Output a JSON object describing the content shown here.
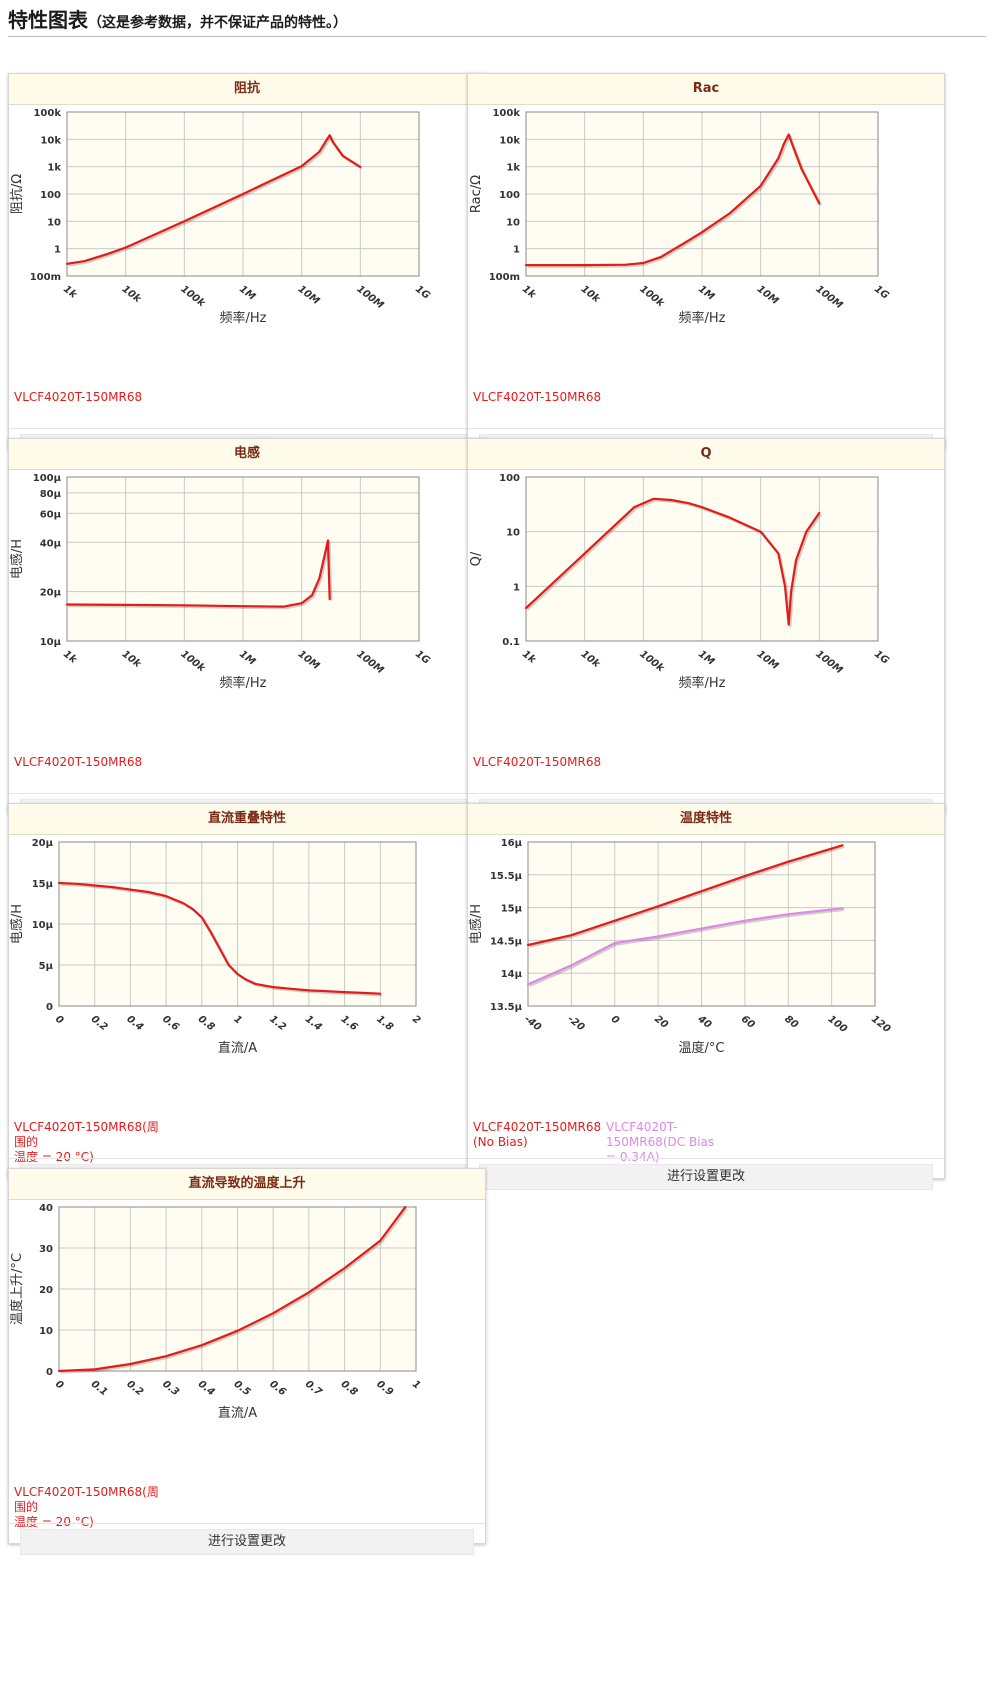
{
  "page": {
    "title": "特性图表",
    "note": "（这是参考数据，并不保证产品的特性。）",
    "button_label": "进行设置更改"
  },
  "colors": {
    "series_red": "#e31b1b",
    "series_violet": "#dd88e8",
    "plot_bg": "#fffdf1",
    "header_text": "#7b2a16"
  },
  "chart_data": [
    {
      "id": "impedance",
      "title": "阻抗",
      "type": "line",
      "xlabel": "频率/Hz",
      "ylabel": "阻抗/Ω",
      "xscale": "log",
      "yscale": "log",
      "xlim": [
        1000,
        1000000000
      ],
      "ylim": [
        0.1,
        100000
      ],
      "xticks": [
        1000,
        10000,
        100000,
        1000000,
        10000000,
        100000000,
        1000000000
      ],
      "xtick_labels": [
        "1k",
        "10k",
        "100k",
        "1M",
        "10M",
        "100M",
        "1G"
      ],
      "yticks": [
        0.1,
        1,
        10,
        100,
        1000,
        10000,
        100000
      ],
      "ytick_labels": [
        "100m",
        "1",
        "10",
        "100",
        "1k",
        "10k",
        "100k"
      ],
      "series": [
        {
          "name": "VLCF4020T-150MR68",
          "color": "#e31b1b",
          "x": [
            1000,
            2000,
            5000,
            10000,
            100000,
            1000000,
            10000000,
            20000000,
            27000000,
            30000000,
            34000000,
            50000000,
            100000000
          ],
          "y": [
            0.28,
            0.35,
            0.65,
            1.1,
            10,
            100,
            1050,
            3500,
            10000,
            14000,
            8000,
            2500,
            980
          ]
        }
      ],
      "legend": [
        {
          "text": "VLCF4020T-150MR68",
          "color": "#e31b1b"
        }
      ]
    },
    {
      "id": "rac",
      "title": "Rac",
      "type": "line",
      "xlabel": "频率/Hz",
      "ylabel": "Rac/Ω",
      "xscale": "log",
      "yscale": "log",
      "xlim": [
        1000,
        1000000000
      ],
      "ylim": [
        0.1,
        100000
      ],
      "xticks": [
        1000,
        10000,
        100000,
        1000000,
        10000000,
        100000000,
        1000000000
      ],
      "xtick_labels": [
        "1k",
        "10k",
        "100k",
        "1M",
        "10M",
        "100M",
        "1G"
      ],
      "yticks": [
        0.1,
        1,
        10,
        100,
        1000,
        10000,
        100000
      ],
      "ytick_labels": [
        "100m",
        "1",
        "10",
        "100",
        "1k",
        "10k",
        "100k"
      ],
      "series": [
        {
          "name": "VLCF4020T-150MR68",
          "color": "#e31b1b",
          "x": [
            1000,
            10000,
            50000,
            100000,
            200000,
            500000,
            1000000,
            3000000,
            10000000,
            20000000,
            25000000,
            30000000,
            35000000,
            50000000,
            100000000
          ],
          "y": [
            0.25,
            0.25,
            0.26,
            0.3,
            0.5,
            1.6,
            4,
            20,
            200,
            2000,
            7000,
            15000,
            6000,
            800,
            45
          ]
        }
      ],
      "legend": [
        {
          "text": "VLCF4020T-150MR68",
          "color": "#e31b1b"
        }
      ]
    },
    {
      "id": "inductance",
      "title": "电感",
      "type": "line",
      "xlabel": "频率/Hz",
      "ylabel": "电感/H",
      "xscale": "log",
      "yscale": "log",
      "xlim": [
        1000,
        1000000000
      ],
      "ylim": [
        1e-05,
        0.0001
      ],
      "xticks": [
        1000,
        10000,
        100000,
        1000000,
        10000000,
        100000000,
        1000000000
      ],
      "xtick_labels": [
        "1k",
        "10k",
        "100k",
        "1M",
        "10M",
        "100M",
        "1G"
      ],
      "yticks": [
        1e-05,
        2e-05,
        4e-05,
        6e-05,
        8e-05,
        0.0001
      ],
      "ytick_labels": [
        "10μ",
        "20μ",
        "40μ",
        "60μ",
        "80μ",
        "100μ"
      ],
      "series": [
        {
          "name": "VLCF4020T-150MR68",
          "color": "#e31b1b",
          "x": [
            1000,
            10000,
            100000,
            1000000,
            5000000,
            10000000,
            15000000,
            20000000,
            25000000,
            28000000,
            30000000
          ],
          "y": [
            1.67e-05,
            1.66e-05,
            1.65e-05,
            1.63e-05,
            1.62e-05,
            1.7e-05,
            1.9e-05,
            2.4e-05,
            3.4e-05,
            4.1e-05,
            1.8e-05
          ]
        }
      ],
      "legend": [
        {
          "text": "VLCF4020T-150MR68",
          "color": "#e31b1b"
        }
      ]
    },
    {
      "id": "q",
      "title": "Q",
      "type": "line",
      "xlabel": "频率/Hz",
      "ylabel": "Q/",
      "xscale": "log",
      "yscale": "log",
      "xlim": [
        1000,
        1000000000
      ],
      "ylim": [
        0.1,
        100
      ],
      "xticks": [
        1000,
        10000,
        100000,
        1000000,
        10000000,
        100000000,
        1000000000
      ],
      "xtick_labels": [
        "1k",
        "10k",
        "100k",
        "1M",
        "10M",
        "100M",
        "1G"
      ],
      "yticks": [
        0.1,
        1,
        10,
        100
      ],
      "ytick_labels": [
        "0.1",
        "1",
        "10",
        "100"
      ],
      "series": [
        {
          "name": "VLCF4020T-150MR68",
          "color": "#e31b1b",
          "x": [
            1000,
            3000,
            10000,
            30000,
            70000,
            150000,
            300000,
            600000,
            1000000,
            3000000,
            10000000,
            20000000,
            26000000,
            30000000,
            33000000,
            40000000,
            60000000,
            100000000
          ],
          "y": [
            0.4,
            1.2,
            4,
            12,
            28,
            40,
            38,
            33,
            28,
            18,
            10,
            4,
            1,
            0.2,
            0.8,
            3,
            10,
            22
          ]
        }
      ],
      "legend": [
        {
          "text": "VLCF4020T-150MR68",
          "color": "#e31b1b"
        }
      ]
    },
    {
      "id": "dc_bias",
      "title": "直流重叠特性",
      "type": "line",
      "xlabel": "直流/A",
      "ylabel": "电感/H",
      "xscale": "linear",
      "yscale": "linear",
      "xlim": [
        0,
        2
      ],
      "ylim": [
        0,
        2e-05
      ],
      "xticks": [
        0,
        0.2,
        0.4,
        0.6,
        0.8,
        1,
        1.2,
        1.4,
        1.6,
        1.8,
        2
      ],
      "xtick_labels": [
        "0",
        "0.2",
        "0.4",
        "0.6",
        "0.8",
        "1",
        "1.2",
        "1.4",
        "1.6",
        "1.8",
        "2"
      ],
      "yticks": [
        0,
        5e-06,
        1e-05,
        1.5e-05,
        2e-05
      ],
      "ytick_labels": [
        "0",
        "5μ",
        "10μ",
        "15μ",
        "20μ"
      ],
      "series": [
        {
          "name": "VLCF4020T-150MR68(周围的温度 = 20 °C)",
          "color": "#e31b1b",
          "x": [
            0,
            0.1,
            0.2,
            0.3,
            0.4,
            0.5,
            0.6,
            0.7,
            0.75,
            0.8,
            0.85,
            0.9,
            0.95,
            1.0,
            1.05,
            1.1,
            1.2,
            1.3,
            1.4,
            1.5,
            1.6,
            1.7,
            1.8
          ],
          "y": [
            1.5e-05,
            1.49e-05,
            1.47e-05,
            1.45e-05,
            1.42e-05,
            1.39e-05,
            1.34e-05,
            1.25e-05,
            1.18e-05,
            1.08e-05,
            9e-06,
            7e-06,
            5e-06,
            3.9e-06,
            3.2e-06,
            2.7e-06,
            2.3e-06,
            2.1e-06,
            1.9e-06,
            1.8e-06,
            1.7e-06,
            1.6e-06,
            1.5e-06
          ]
        }
      ],
      "legend": [
        {
          "text": "VLCF4020T-150MR68(周围的",
          "text2": "温度 = 20 °C)",
          "color": "#e31b1b"
        }
      ]
    },
    {
      "id": "temperature",
      "title": "温度特性",
      "type": "line",
      "xlabel": "温度/°C",
      "ylabel": "电感/H",
      "xscale": "linear",
      "yscale": "linear",
      "xlim": [
        -40,
        120
      ],
      "ylim": [
        1.35e-05,
        1.6e-05
      ],
      "xticks": [
        -40,
        -20,
        0,
        20,
        40,
        60,
        80,
        100,
        120
      ],
      "xtick_labels": [
        "-40",
        "-20",
        "0",
        "20",
        "40",
        "60",
        "80",
        "100",
        "120"
      ],
      "yticks": [
        1.35e-05,
        1.4e-05,
        1.45e-05,
        1.5e-05,
        1.55e-05,
        1.6e-05
      ],
      "ytick_labels": [
        "13.5μ",
        "14μ",
        "14.5μ",
        "15μ",
        "15.5μ",
        "16μ"
      ],
      "series": [
        {
          "name": "VLCF4020T-150MR68 (No Bias)",
          "color": "#e31b1b",
          "x": [
            -40,
            -20,
            0,
            20,
            40,
            60,
            80,
            105
          ],
          "y": [
            1.443e-05,
            1.458e-05,
            1.48e-05,
            1.502e-05,
            1.525e-05,
            1.548e-05,
            1.57e-05,
            1.595e-05
          ]
        },
        {
          "name": "VLCF4020T-150MR68(DC Bias = 0.34A)",
          "color": "#dd88e8",
          "x": [
            -40,
            -20,
            0,
            20,
            40,
            60,
            80,
            105
          ],
          "y": [
            1.383e-05,
            1.412e-05,
            1.446e-05,
            1.456e-05,
            1.468e-05,
            1.48e-05,
            1.49e-05,
            1.499e-05
          ]
        }
      ],
      "legend": [
        {
          "text": "VLCF4020T-150MR68",
          "text2": "(No Bias)",
          "color": "#e31b1b"
        },
        {
          "text": "VLCF4020T-150MR68(DC Bias",
          "text2": "= 0.34A)",
          "color": "#dd88e8"
        }
      ]
    },
    {
      "id": "temp_rise",
      "title": "直流导致的温度上升",
      "type": "line",
      "xlabel": "直流/A",
      "ylabel": "温度上升/°C",
      "xscale": "linear",
      "yscale": "linear",
      "xlim": [
        0,
        1
      ],
      "ylim": [
        0,
        40
      ],
      "xticks": [
        0,
        0.1,
        0.2,
        0.3,
        0.4,
        0.5,
        0.6,
        0.7,
        0.8,
        0.9,
        1
      ],
      "xtick_labels": [
        "0",
        "0.1",
        "0.2",
        "0.3",
        "0.4",
        "0.5",
        "0.6",
        "0.7",
        "0.8",
        "0.9",
        "1"
      ],
      "yticks": [
        0,
        10,
        20,
        30,
        40
      ],
      "ytick_labels": [
        "0",
        "10",
        "20",
        "30",
        "40"
      ],
      "series": [
        {
          "name": "VLCF4020T-150MR68(周围的温度 = 20 °C)",
          "color": "#e31b1b",
          "x": [
            0,
            0.1,
            0.2,
            0.3,
            0.4,
            0.5,
            0.6,
            0.7,
            0.8,
            0.9,
            0.97
          ],
          "y": [
            0,
            0.4,
            1.7,
            3.6,
            6.3,
            9.8,
            14.1,
            19.2,
            25.1,
            31.8,
            40
          ]
        }
      ],
      "legend": [
        {
          "text": "VLCF4020T-150MR68(周围的",
          "text2": "温度 = 20 °C)",
          "color": "#e31b1b"
        }
      ]
    }
  ]
}
